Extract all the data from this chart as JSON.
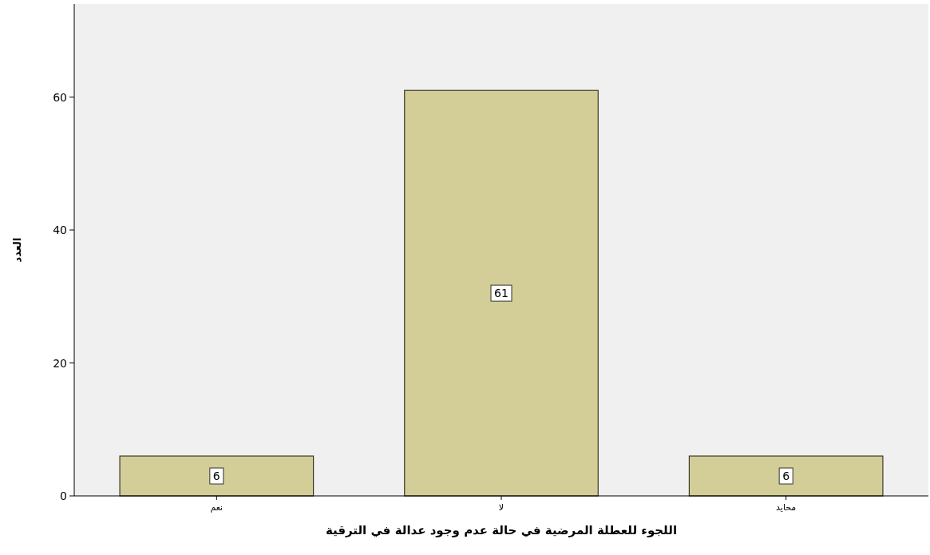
{
  "chart_data": {
    "type": "bar",
    "xlabel": "اللجوء للعطلة المرضية في حالة عدم وجود عدالة في الترقية",
    "ylabel": "العدد",
    "categories": [
      "نعم",
      "لا",
      "محايد"
    ],
    "values": [
      6,
      61,
      6
    ],
    "color": "#d3ce97",
    "ylim": [
      0,
      74
    ],
    "yticks": [
      0,
      20,
      40,
      60
    ],
    "grid": false,
    "data_labels": true
  }
}
